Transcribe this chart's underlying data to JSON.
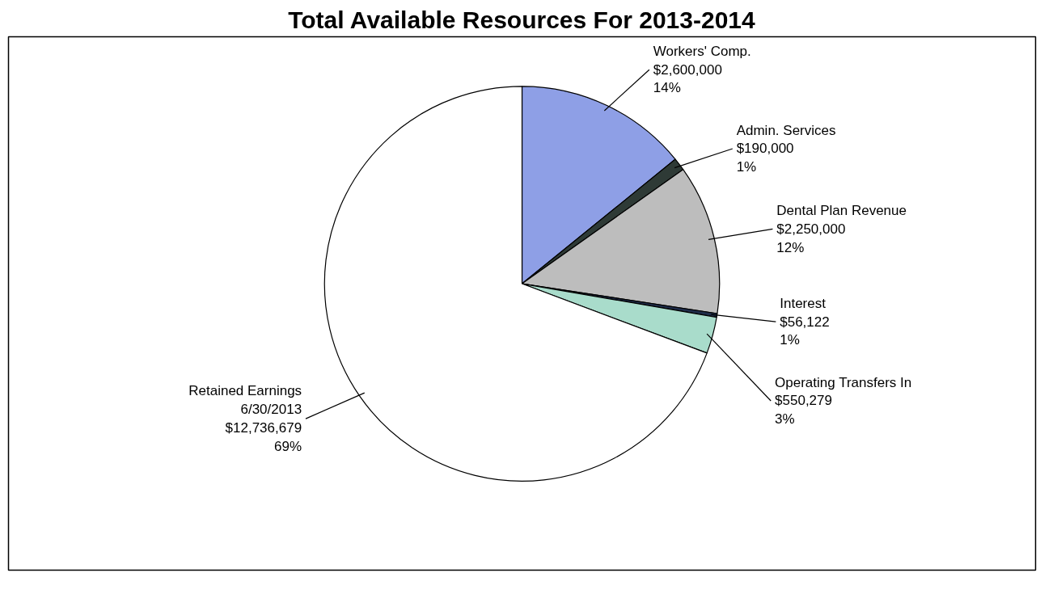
{
  "chart_data": {
    "type": "pie",
    "title": "Total Available Resources For 2013-2014",
    "categories": [
      "Workers' Comp.",
      "Admin. Services",
      "Dental Plan Revenue",
      "Interest",
      "Operating Transfers In",
      "Retained Earnings\n6/30/2013"
    ],
    "values": [
      2600000,
      190000,
      2250000,
      56122,
      550279,
      12736679
    ],
    "value_labels": [
      "$2,600,000\n14%",
      "$190,000\n1%",
      "$2,250,000\n12%",
      "$56,122\n1%",
      "$550,279\n3%",
      "$12,736,679\n69%"
    ],
    "colors": [
      "#8e9fe6",
      "#2e3a36",
      "#bdbdbd",
      "#1f2d4a",
      "#a9dccb",
      "#ffffff"
    ]
  }
}
